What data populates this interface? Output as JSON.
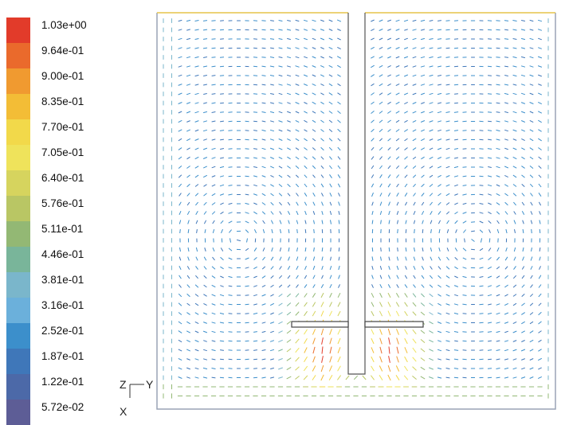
{
  "legend": {
    "colors": [
      "#e23b2a",
      "#ea6a2c",
      "#f09a30",
      "#f3bd36",
      "#f2d94a",
      "#efe35b",
      "#d6d45e",
      "#b9c664",
      "#93b874",
      "#79b59a",
      "#7ab6cb",
      "#6bb0db",
      "#3c8fcb",
      "#3f77b9",
      "#4c69a8",
      "#5d5d96"
    ],
    "labels": [
      "1.03e+00",
      "9.64e-01",
      "9.00e-01",
      "8.35e-01",
      "7.70e-01",
      "7.05e-01",
      "6.40e-01",
      "5.76e-01",
      "5.11e-01",
      "4.46e-01",
      "3.81e-01",
      "3.16e-01",
      "2.52e-01",
      "1.87e-01",
      "1.22e-01",
      "5.72e-02"
    ]
  },
  "axes": {
    "vertical": "Z",
    "horizontal": "Y",
    "out_of_plane": "X"
  },
  "vector_field": {
    "scalar_min": 0.0572,
    "scalar_max": 1.03,
    "components": [
      "tank-wall",
      "central-shaft",
      "impeller-blade-left",
      "impeller-blade-right",
      "velocity-vectors"
    ]
  }
}
